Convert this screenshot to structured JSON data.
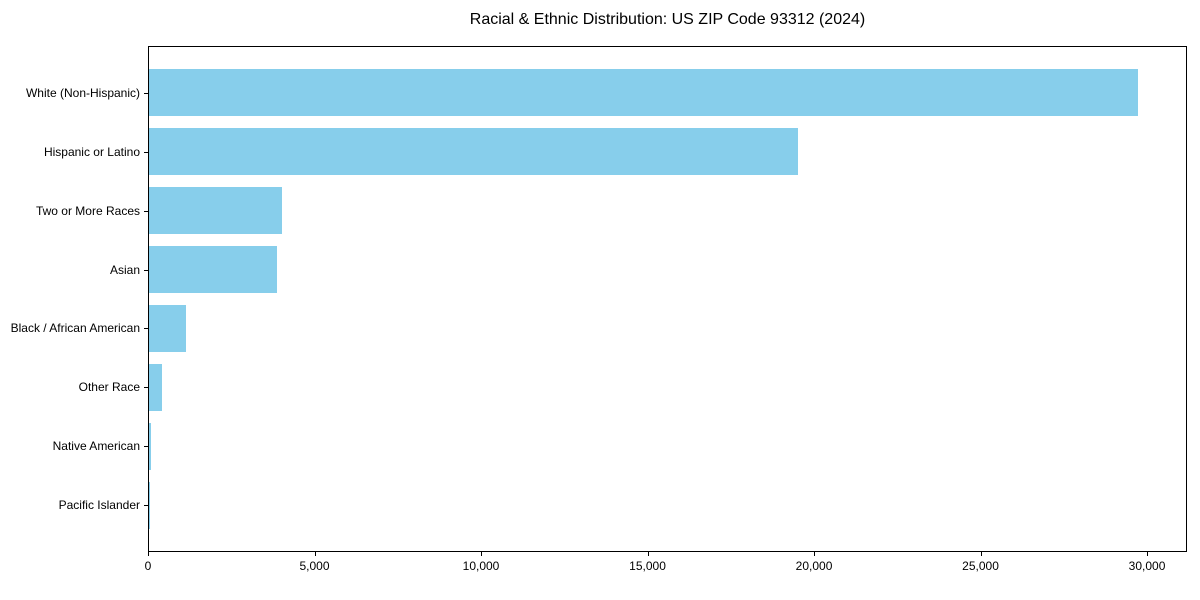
{
  "figure": {
    "background": "#ffffff"
  },
  "chart_data": {
    "type": "bar",
    "orientation": "horizontal",
    "title": "Racial & Ethnic Distribution: US ZIP Code 93312 (2024)",
    "categories": [
      "White (Non-Hispanic)",
      "Hispanic or Latino",
      "Two or More Races",
      "Asian",
      "Black / African American",
      "Other Race",
      "Native American",
      "Pacific Islander"
    ],
    "values": [
      29700,
      19500,
      4000,
      3850,
      1100,
      380,
      50,
      10
    ],
    "xlabel": "",
    "ylabel": "",
    "xlim": [
      0,
      31200
    ],
    "x_ticks": [
      0,
      5000,
      10000,
      15000,
      20000,
      25000,
      30000
    ],
    "x_tick_labels": [
      "0",
      "5,000",
      "10,000",
      "15,000",
      "20,000",
      "25,000",
      "30,000"
    ],
    "bar_color": "#87CEEB",
    "axis_color": "#000000",
    "grid": false,
    "legend": null
  }
}
